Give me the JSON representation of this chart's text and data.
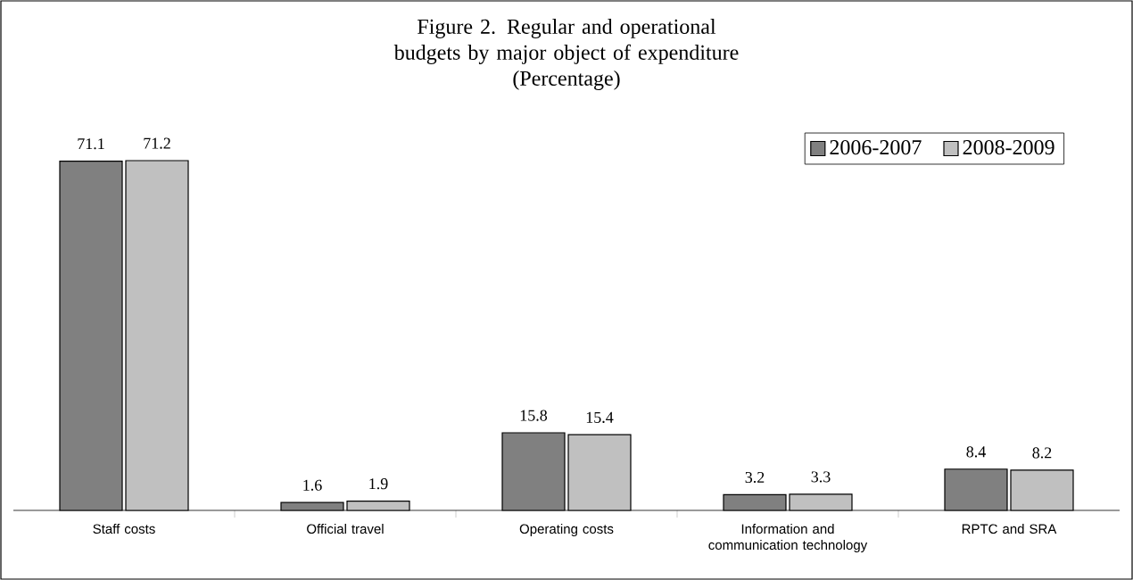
{
  "chart_data": {
    "type": "bar",
    "title": "Figure 2. Regular and operational budgets by major object of expenditure",
    "subtitle": "(Percentage)",
    "categories": [
      "Staff costs",
      "Official travel",
      "Operating costs",
      "Information and communication technology",
      "RPTC and SRA"
    ],
    "series": [
      {
        "name": "2006-2007",
        "color": "#808080",
        "values": [
          71.1,
          1.6,
          15.8,
          3.2,
          8.4
        ]
      },
      {
        "name": "2008-2009",
        "color": "#c0c0c0",
        "values": [
          71.2,
          1.9,
          15.4,
          3.3,
          8.2
        ]
      }
    ],
    "data_labels": true,
    "legend": "top right"
  }
}
